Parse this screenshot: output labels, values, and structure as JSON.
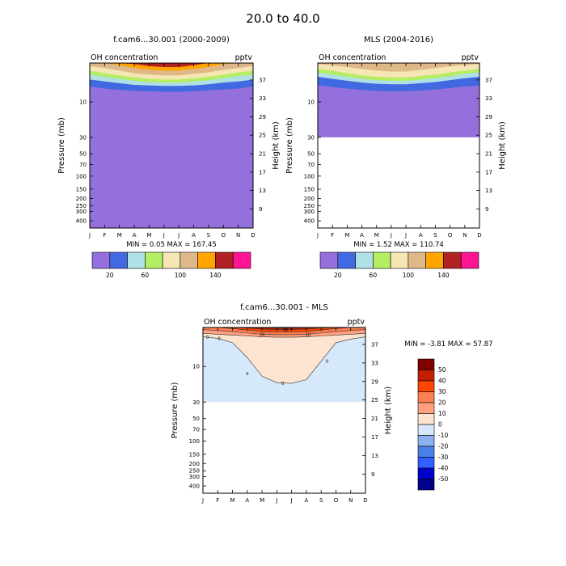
{
  "title": "20.0 to  40.0",
  "months": [
    "J",
    "F",
    "M",
    "A",
    "M",
    "J",
    "J",
    "A",
    "S",
    "O",
    "N",
    "D"
  ],
  "pressure_ticks": [
    10,
    30,
    50,
    70,
    100,
    150,
    200,
    250,
    300,
    400
  ],
  "height_ticks": [
    37,
    33,
    29,
    25,
    21,
    17,
    13,
    9
  ],
  "colors": {
    "fill_palette": [
      "#9370db",
      "#4169e1",
      "#aee0e6",
      "#b4ee64",
      "#f5e6b4",
      "#deb887",
      "#ffa500",
      "#b22222",
      "#ff1493"
    ],
    "diff_palette": [
      "#00008b",
      "#0000cd",
      "#3060ff",
      "#4a7ee8",
      "#8cb0f0",
      "#d6e8fb",
      "#fde4d0",
      "#ffa080",
      "#ff7f50",
      "#ff4500",
      "#c02000",
      "#800000"
    ]
  },
  "chart_data": [
    {
      "type": "contour",
      "title": "f.cam6...30.001 (2000-2009)",
      "left_label": "OH concentration",
      "right_label": "pptv",
      "xlabel": "",
      "ylabel": "Pressure (mb)",
      "ylabel_right": "Height (km)",
      "ylim_mb": [
        500,
        3
      ],
      "stats": "MIN =   0.05  MAX = 167.45",
      "colorbar_ticks": [
        "20",
        "60",
        "100",
        "140"
      ],
      "contour_levels": [
        20,
        40,
        60,
        80,
        100,
        120,
        140,
        160
      ],
      "data_bottom_mb": 500,
      "band_bottoms_mb": {
        "lev20": [
          6.2,
          6.6,
          6.9,
          7.1,
          7.2,
          7.3,
          7.3,
          7.2,
          7.0,
          6.8,
          6.6,
          6.2
        ],
        "lev40": [
          5.0,
          5.3,
          5.6,
          5.9,
          6.0,
          6.1,
          6.1,
          6.0,
          5.8,
          5.5,
          5.3,
          5.0
        ],
        "lev60": [
          4.3,
          4.6,
          4.9,
          5.2,
          5.4,
          5.5,
          5.5,
          5.3,
          5.1,
          4.8,
          4.5,
          4.3
        ],
        "lev80": [
          3.8,
          4.1,
          4.4,
          4.7,
          4.9,
          5.0,
          5.0,
          4.8,
          4.6,
          4.3,
          4.0,
          3.8
        ],
        "lev100": [
          3.3,
          3.5,
          3.8,
          4.1,
          4.3,
          4.4,
          4.4,
          4.2,
          4.0,
          3.7,
          3.5,
          3.3
        ],
        "lev120": [
          3.0,
          3.0,
          3.2,
          3.5,
          3.7,
          3.8,
          3.8,
          3.6,
          3.4,
          3.1,
          3.0,
          3.0
        ],
        "lev140": [
          3.0,
          3.0,
          3.0,
          3.1,
          3.3,
          3.4,
          3.4,
          3.2,
          3.0,
          3.0,
          3.0,
          3.0
        ],
        "lev160": [
          3.0,
          3.0,
          3.0,
          3.0,
          3.0,
          3.05,
          3.05,
          3.0,
          3.0,
          3.0,
          3.0,
          3.0
        ]
      }
    },
    {
      "type": "contour",
      "title": "MLS (2004-2016)",
      "left_label": "OH concentration",
      "right_label": "pptv",
      "xlabel": "",
      "ylabel": "Pressure (mb)",
      "ylabel_right": "Height (km)",
      "ylim_mb": [
        500,
        3
      ],
      "stats": "MIN =   1.52  MAX = 110.74",
      "colorbar_ticks": [
        "20",
        "60",
        "100",
        "140"
      ],
      "contour_levels": [
        20,
        40,
        60,
        80,
        100,
        120,
        140,
        160
      ],
      "data_bottom_mb": 30,
      "band_bottoms_mb": {
        "lev20": [
          6.0,
          6.3,
          6.6,
          6.9,
          7.1,
          7.2,
          7.2,
          7.0,
          6.8,
          6.5,
          6.2,
          6.0
        ],
        "lev40": [
          4.6,
          4.9,
          5.2,
          5.5,
          5.7,
          5.8,
          5.8,
          5.6,
          5.4,
          5.1,
          4.8,
          4.6
        ],
        "lev60": [
          4.0,
          4.3,
          4.6,
          4.9,
          5.1,
          5.2,
          5.2,
          5.0,
          4.8,
          4.5,
          4.2,
          4.0
        ],
        "lev80": [
          3.6,
          3.8,
          4.1,
          4.4,
          4.6,
          4.7,
          4.7,
          4.5,
          4.3,
          4.0,
          3.8,
          3.6
        ],
        "lev100": [
          3.1,
          3.2,
          3.4,
          3.6,
          3.8,
          3.9,
          3.9,
          3.7,
          3.5,
          3.3,
          3.2,
          3.1
        ],
        "lev120": [
          3.0,
          3.0,
          3.0,
          3.0,
          3.0,
          3.0,
          3.0,
          3.0,
          3.0,
          3.0,
          3.0,
          3.0
        ],
        "lev140": [
          3.0,
          3.0,
          3.0,
          3.0,
          3.0,
          3.0,
          3.0,
          3.0,
          3.0,
          3.0,
          3.0,
          3.0
        ],
        "lev160": [
          3.0,
          3.0,
          3.0,
          3.0,
          3.0,
          3.0,
          3.0,
          3.0,
          3.0,
          3.0,
          3.0,
          3.0
        ]
      }
    },
    {
      "type": "contour",
      "title": "f.cam6...30.001 - MLS",
      "left_label": "OH concentration",
      "right_label": "pptv",
      "xlabel": "",
      "ylabel": "Pressure (mb)",
      "ylabel_right": "Height (km)",
      "ylim_mb": [
        500,
        3
      ],
      "stats": "MIN =  -3.81  MAX =  57.87",
      "colorbar_ticks": [
        "50",
        "40",
        "30",
        "20",
        "10",
        "0",
        "-10",
        "-20",
        "-30",
        "-40",
        "-50"
      ],
      "contour_levels": [
        -50,
        -40,
        -30,
        -20,
        -10,
        0,
        10,
        20,
        30,
        40,
        50
      ],
      "data_bottom_mb": 30,
      "background_level": "lev_m10",
      "band_bottoms_mb": {
        "lev0": [
          4.0,
          4.2,
          4.8,
          7.6,
          13.5,
          16.5,
          16.8,
          15.0,
          8.5,
          4.8,
          4.3,
          4.0
        ],
        "lev10": [
          3.6,
          3.7,
          3.8,
          3.9,
          4.0,
          4.05,
          4.05,
          4.0,
          3.9,
          3.8,
          3.7,
          3.6
        ],
        "lev20": [
          3.2,
          3.3,
          3.4,
          3.55,
          3.7,
          3.75,
          3.75,
          3.7,
          3.55,
          3.4,
          3.3,
          3.2
        ],
        "lev30": [
          3.0,
          3.0,
          3.1,
          3.25,
          3.4,
          3.45,
          3.45,
          3.4,
          3.25,
          3.1,
          3.0,
          3.0
        ],
        "lev40": [
          3.0,
          3.0,
          3.0,
          3.05,
          3.15,
          3.2,
          3.2,
          3.15,
          3.05,
          3.0,
          3.0,
          3.0
        ],
        "lev50": [
          3.0,
          3.0,
          3.0,
          3.0,
          3.0,
          3.05,
          3.05,
          3.0,
          3.0,
          3.0,
          3.0,
          3.0
        ]
      },
      "contour_labels": [
        {
          "text": "0",
          "month_index": 0.3,
          "mb": 4.0
        },
        {
          "text": "20",
          "month_index": 4.0,
          "mb": 3.7
        },
        {
          "text": "40",
          "month_index": 5.6,
          "mb": 3.2
        },
        {
          "text": "20",
          "month_index": 7.1,
          "mb": 3.7
        },
        {
          "text": "0",
          "month_index": 1.1,
          "mb": 4.2
        },
        {
          "text": "0",
          "month_index": 8.4,
          "mb": 8.5
        },
        {
          "text": "0",
          "month_index": 3.0,
          "mb": 12.5
        },
        {
          "text": "0",
          "month_index": 5.4,
          "mb": 16.7
        }
      ]
    }
  ]
}
